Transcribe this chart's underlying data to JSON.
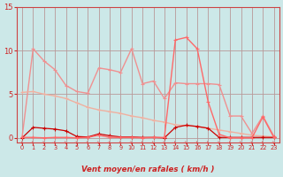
{
  "xlabel": "Vent moyen/en rafales ( km/h )",
  "bg_color": "#cce8e8",
  "grid_color": "#b89898",
  "xlim": [
    -0.5,
    23.5
  ],
  "ylim": [
    -0.5,
    15
  ],
  "yticks": [
    0,
    5,
    10,
    15
  ],
  "xticks": [
    0,
    1,
    2,
    3,
    4,
    5,
    6,
    7,
    8,
    9,
    10,
    11,
    12,
    13,
    14,
    15,
    16,
    17,
    18,
    19,
    20,
    21,
    22,
    23
  ],
  "line_rafales": {
    "x": [
      0,
      1,
      2,
      3,
      4,
      5,
      6,
      7,
      8,
      9,
      10,
      11,
      12,
      13,
      14,
      15,
      16,
      17,
      18,
      19,
      20,
      21,
      22,
      23
    ],
    "y": [
      0.1,
      10.2,
      8.8,
      7.8,
      6.0,
      5.3,
      5.1,
      8.0,
      7.8,
      7.5,
      10.2,
      6.2,
      6.5,
      4.5,
      6.3,
      6.2,
      6.2,
      6.2,
      6.1,
      2.5,
      2.5,
      0.5,
      2.5,
      0.2
    ],
    "color": "#f09090",
    "lw": 1.0
  },
  "line_moy_high": {
    "x": [
      0,
      1,
      2,
      3,
      4,
      5,
      6,
      7,
      8,
      9,
      10,
      11,
      12,
      13,
      14,
      15,
      16,
      17,
      18,
      19,
      20,
      21,
      22,
      23
    ],
    "y": [
      5.2,
      5.3,
      5.0,
      4.8,
      4.5,
      4.0,
      3.5,
      3.2,
      3.0,
      2.8,
      2.5,
      2.3,
      2.0,
      1.8,
      1.5,
      1.4,
      1.3,
      1.1,
      0.9,
      0.7,
      0.5,
      0.3,
      0.2,
      0.1
    ],
    "color": "#f0b0a0",
    "lw": 1.0
  },
  "line_moy_low": {
    "x": [
      0,
      1,
      2,
      3,
      4,
      5,
      6,
      7,
      8,
      9,
      10,
      11,
      12,
      13,
      14,
      15,
      16,
      17,
      18,
      19,
      20,
      21,
      22,
      23
    ],
    "y": [
      0.0,
      1.2,
      1.1,
      1.0,
      0.8,
      0.15,
      0.1,
      0.45,
      0.25,
      0.1,
      0.1,
      0.05,
      0.05,
      0.0,
      1.2,
      1.45,
      1.3,
      1.1,
      0.05,
      0.05,
      0.05,
      0.05,
      0.05,
      0.05
    ],
    "color": "#cc0000",
    "lw": 0.9
  },
  "line_peak": {
    "x": [
      0,
      1,
      2,
      3,
      4,
      5,
      6,
      7,
      8,
      9,
      10,
      11,
      12,
      13,
      14,
      15,
      16,
      17,
      18,
      19,
      20,
      21,
      22,
      23
    ],
    "y": [
      0.05,
      0.05,
      0.0,
      0.05,
      0.05,
      0.0,
      0.05,
      0.3,
      0.05,
      0.05,
      0.05,
      0.0,
      0.05,
      0.05,
      11.2,
      11.5,
      10.2,
      4.1,
      0.4,
      0.0,
      0.0,
      0.0,
      2.4,
      0.05
    ],
    "color": "#ff6868",
    "lw": 1.0
  },
  "arrow_color": "#dd4444",
  "tick_color": "#cc2222",
  "spine_color": "#cc4444"
}
